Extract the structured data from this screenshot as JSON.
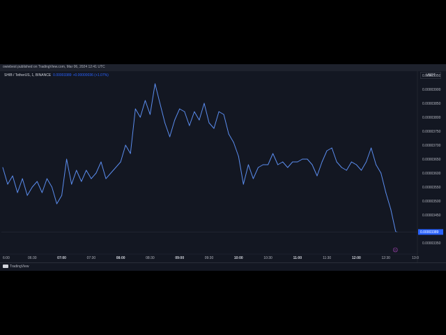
{
  "header": {
    "publisher_text": "owiebest published on TradingView.com, Mar 06, 2024 12:41 UTC"
  },
  "legend": {
    "symbol": "SHIB / TetherUS, 1, BINANCE",
    "price": "0.00003389",
    "change": "+0.00000036 (+1.07%)"
  },
  "currency": "USDT",
  "footer": {
    "brand": "TradingView"
  },
  "colors": {
    "background": "#131722",
    "line": "#5b8def",
    "price_tag": "#2962ff",
    "axis_text": "#b2b5be",
    "marker": "#ab47bc"
  },
  "chart_data": {
    "type": "line",
    "title": "",
    "xlabel": "",
    "ylabel": "",
    "x_tick_labels": [
      "6:00",
      "06:30",
      "07:00",
      "07:30",
      "08:00",
      "08:30",
      "09:00",
      "09:30",
      "10:00",
      "10:30",
      "11:00",
      "11:30",
      "12:00",
      "12:30",
      "13:0"
    ],
    "y_tick_labels": [
      "0.00003950",
      "0.00003900",
      "0.00003850",
      "0.00003800",
      "0.00003750",
      "0.00003700",
      "0.00003650",
      "0.00003600",
      "0.00003550",
      "0.00003500",
      "0.00003450",
      "0.00003350"
    ],
    "ylim": [
      3.32e-05,
      3.96e-05
    ],
    "xlim": [
      "06:00",
      "13:00"
    ],
    "last_price_label": "0.00003389",
    "marker_label": "D",
    "series": [
      {
        "x": [
          "06:00",
          "06:05",
          "06:10",
          "06:15",
          "06:20",
          "06:25",
          "06:30",
          "06:35",
          "06:40",
          "06:45",
          "06:50",
          "06:55",
          "07:00",
          "07:05",
          "07:10",
          "07:15",
          "07:20",
          "07:25",
          "07:30",
          "07:35",
          "07:40",
          "07:45",
          "07:50",
          "07:55",
          "08:00",
          "08:05",
          "08:10",
          "08:15",
          "08:20",
          "08:25",
          "08:30",
          "08:35",
          "08:40",
          "08:45",
          "08:50",
          "08:55",
          "09:00",
          "09:05",
          "09:10",
          "09:15",
          "09:20",
          "09:25",
          "09:30",
          "09:35",
          "09:40",
          "09:45",
          "09:50",
          "09:55",
          "10:00",
          "10:05",
          "10:10",
          "10:15",
          "10:20",
          "10:25",
          "10:30",
          "10:35",
          "10:40",
          "10:45",
          "10:50",
          "10:55",
          "11:00",
          "11:05",
          "11:10",
          "11:15",
          "11:20",
          "11:25",
          "11:30",
          "11:35",
          "11:40",
          "11:45",
          "11:50",
          "11:55",
          "12:00",
          "12:05",
          "12:10",
          "12:15",
          "12:20",
          "12:25",
          "12:30",
          "12:35",
          "12:40"
        ],
        "values": [
          3.62e-05,
          3.56e-05,
          3.59e-05,
          3.53e-05,
          3.58e-05,
          3.52e-05,
          3.55e-05,
          3.57e-05,
          3.53e-05,
          3.58e-05,
          3.55e-05,
          3.49e-05,
          3.52e-05,
          3.65e-05,
          3.56e-05,
          3.61e-05,
          3.57e-05,
          3.61e-05,
          3.58e-05,
          3.6e-05,
          3.64e-05,
          3.58e-05,
          3.6e-05,
          3.62e-05,
          3.64e-05,
          3.7e-05,
          3.67e-05,
          3.83e-05,
          3.8e-05,
          3.86e-05,
          3.81e-05,
          3.92e-05,
          3.85e-05,
          3.78e-05,
          3.73e-05,
          3.79e-05,
          3.83e-05,
          3.82e-05,
          3.77e-05,
          3.82e-05,
          3.79e-05,
          3.85e-05,
          3.78e-05,
          3.76e-05,
          3.82e-05,
          3.81e-05,
          3.74e-05,
          3.71e-05,
          3.66e-05,
          3.56e-05,
          3.63e-05,
          3.58e-05,
          3.62e-05,
          3.63e-05,
          3.63e-05,
          3.67e-05,
          3.63e-05,
          3.64e-05,
          3.62e-05,
          3.64e-05,
          3.64e-05,
          3.65e-05,
          3.65e-05,
          3.63e-05,
          3.59e-05,
          3.64e-05,
          3.68e-05,
          3.69e-05,
          3.64e-05,
          3.62e-05,
          3.61e-05,
          3.64e-05,
          3.63e-05,
          3.61e-05,
          3.64e-05,
          3.69e-05,
          3.63e-05,
          3.6e-05,
          3.53e-05,
          3.47e-05,
          3.39e-05
        ]
      }
    ]
  }
}
